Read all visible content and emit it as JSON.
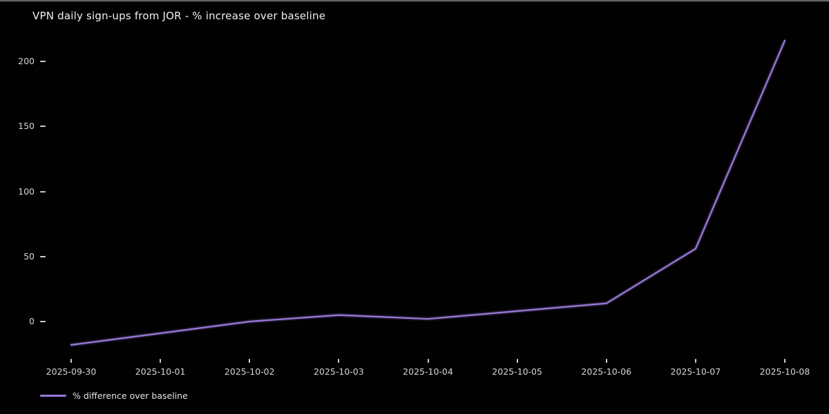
{
  "window": {
    "top_edge_present": true
  },
  "chart_data": {
    "type": "line",
    "title": "VPN daily sign-ups from JOR - % increase over baseline",
    "x": [
      "2025-09-30",
      "2025-10-01",
      "2025-10-02",
      "2025-10-03",
      "2025-10-04",
      "2025-10-05",
      "2025-10-06",
      "2025-10-07",
      "2025-10-08"
    ],
    "series": [
      {
        "name": "% difference over baseline",
        "values": [
          -18,
          -9,
          0,
          5,
          2,
          8,
          14,
          56,
          216
        ]
      }
    ],
    "xlabel": "",
    "ylabel": "",
    "y_ticks": [
      0,
      50,
      100,
      150,
      200
    ],
    "ylim": [
      -30,
      228
    ],
    "grid": false,
    "legend_position": "lower-left",
    "colors": {
      "background": "#010101",
      "line": "#9879d6",
      "tick_text": "#d6d6d6",
      "title_text": "#f0f0f0"
    }
  }
}
